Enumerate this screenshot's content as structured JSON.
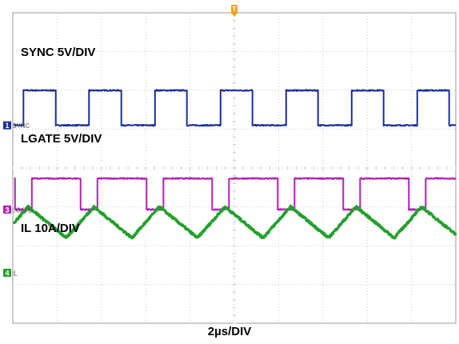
{
  "chart_data": {
    "type": "line",
    "title": "",
    "xlabel": "2µs/DIV",
    "ylabel": "",
    "grid": true,
    "x_divisions": 10,
    "y_divisions": 8,
    "trigger_marker": "T",
    "series": [
      {
        "key": "sync",
        "name": "SYNC 5V/DIV",
        "marker_label": "SYNC",
        "marker_number": "1",
        "color": "#1c2f9c",
        "shape": "square",
        "period_div": 1.48,
        "first_rise_div": 0.24,
        "high_fraction": 0.49,
        "offset_div": 5.1,
        "amplitude_div": 0.9
      },
      {
        "key": "lgate",
        "name": "LGATE 5V/DIV",
        "marker_label": "LGATE",
        "marker_number": "3",
        "color": "#b51fb5",
        "shape": "pulse",
        "period_div": 1.48,
        "first_fall_div": 1.53,
        "low_width_div": 0.38,
        "offset_div": 2.93,
        "amplitude_div": 0.8
      },
      {
        "key": "il",
        "name": "IL 10A/DIV",
        "marker_label": "IL",
        "marker_number": "4",
        "color": "#22a02c",
        "shape": "triangle",
        "period_div": 1.48,
        "first_peak_div": 1.83,
        "rise_fraction": 0.42,
        "offset_div": 1.3,
        "peak_div": 1.7,
        "valley_div": 0.9
      }
    ]
  }
}
